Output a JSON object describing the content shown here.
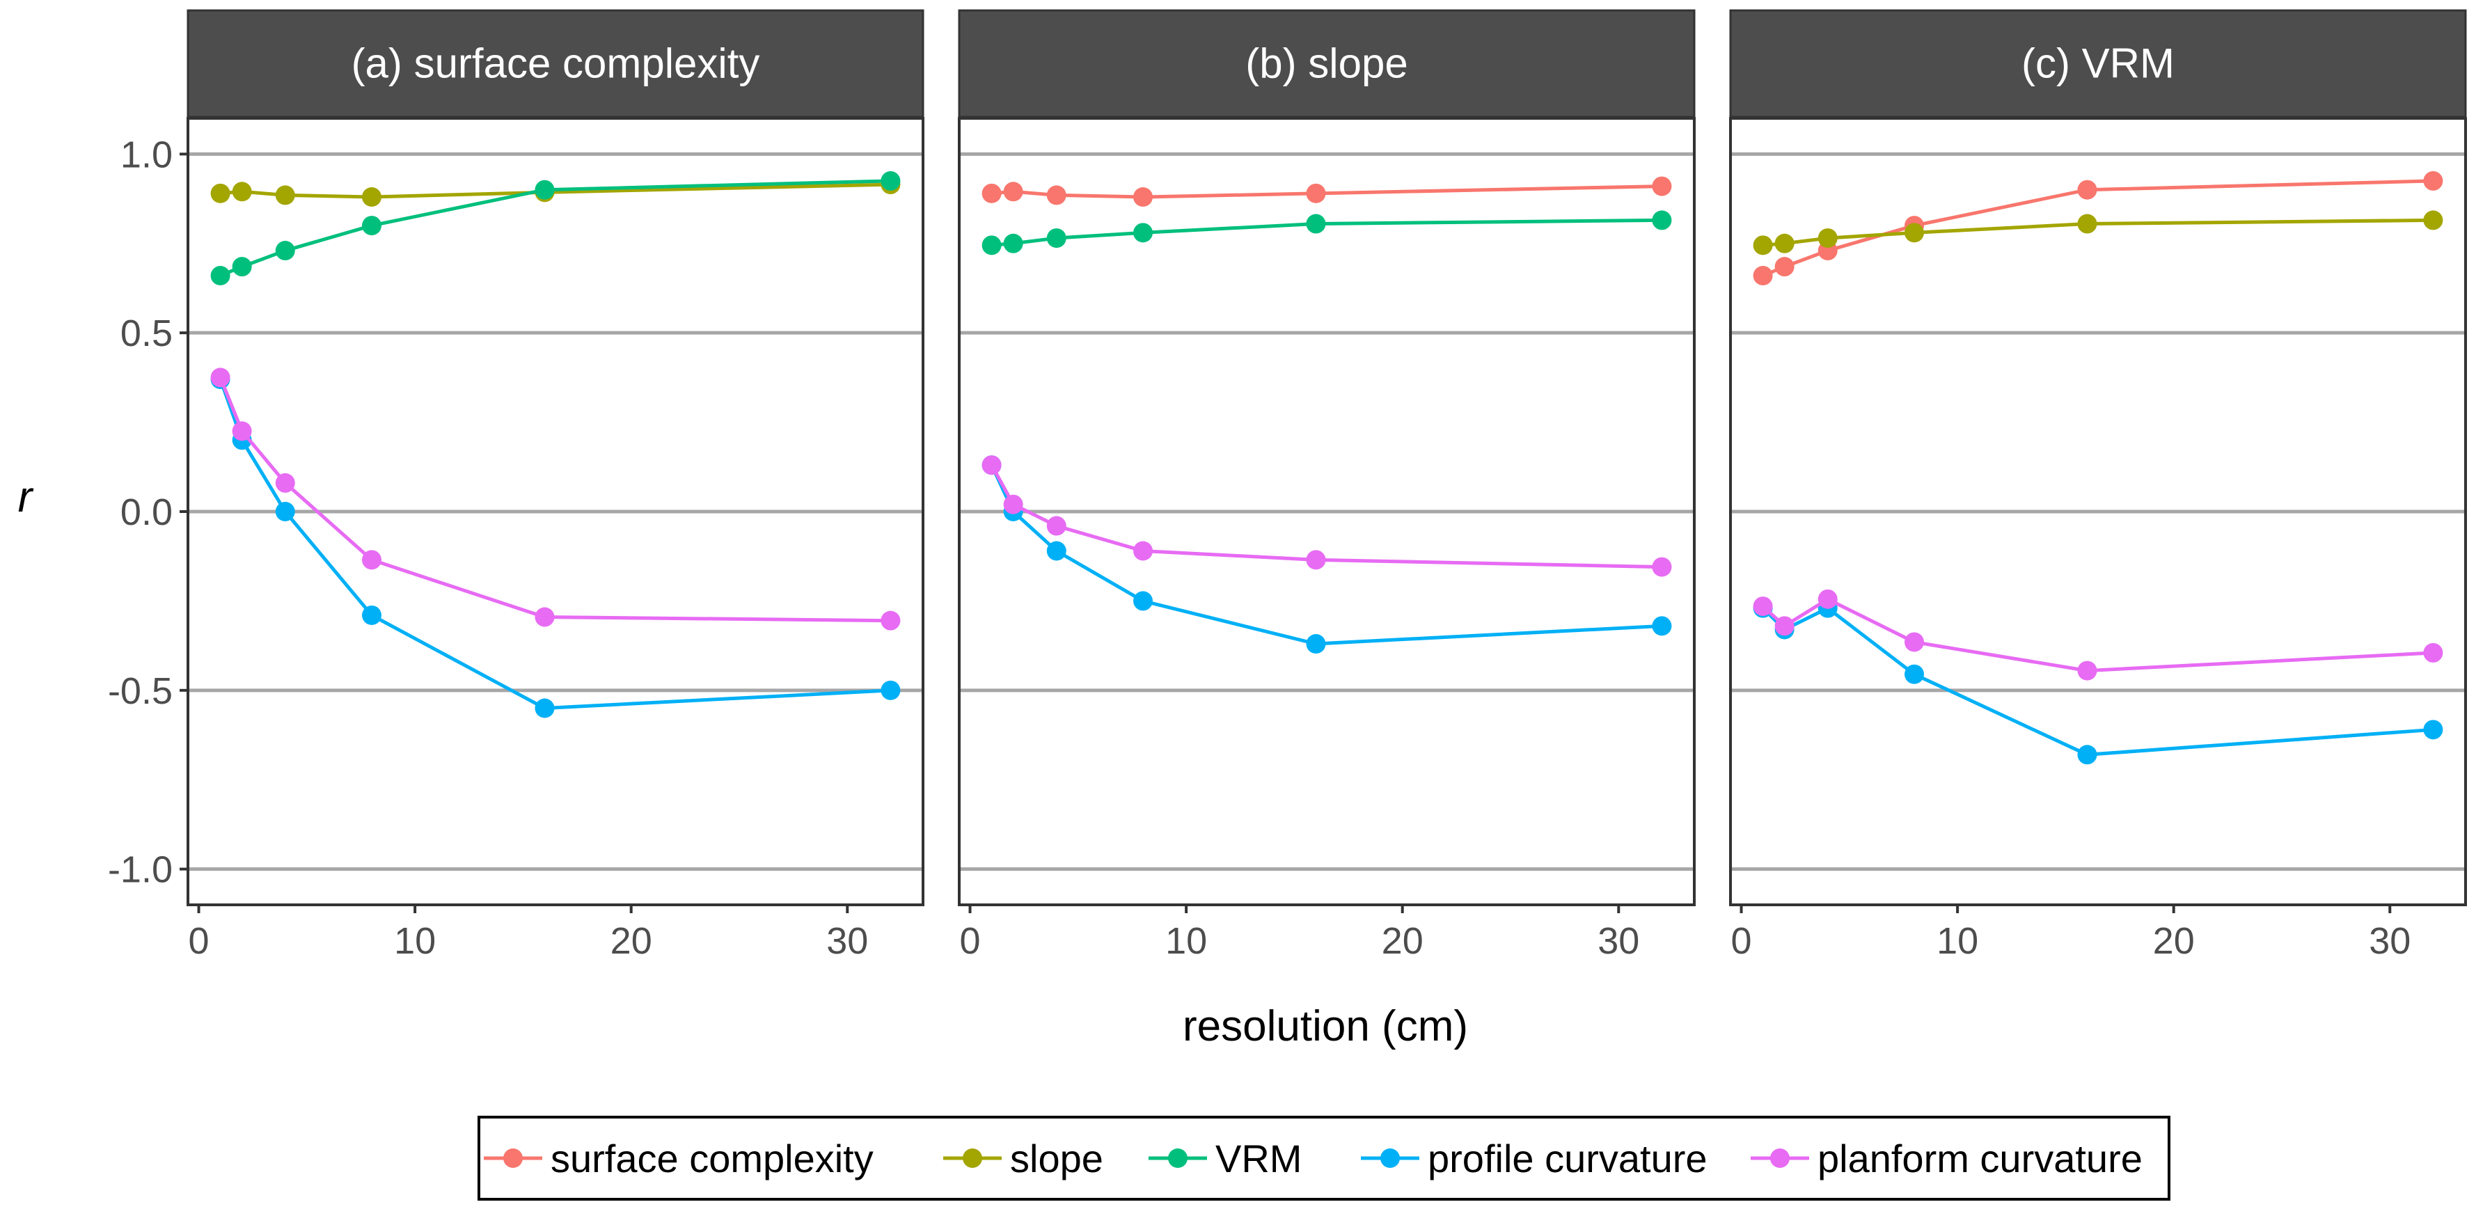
{
  "chart_data": {
    "type": "line",
    "xlabel": "resolution (cm)",
    "ylabel": "r",
    "x": [
      1,
      2,
      4,
      8,
      16,
      32
    ],
    "xlim": [
      -0.5,
      33.5
    ],
    "ylim": [
      -1.1,
      1.1
    ],
    "xticks": [
      0,
      10,
      20,
      30
    ],
    "xtick_labels": [
      "0",
      "10",
      "20",
      "30"
    ],
    "yticks": [
      -1.0,
      -0.5,
      0.0,
      0.5,
      1.0
    ],
    "ytick_labels": [
      "-1.0",
      "-0.5",
      "0.0",
      "0.5",
      "1.0"
    ],
    "grid": "horizontal major gridlines",
    "legend": {
      "position": "bottom",
      "entries": [
        {
          "name": "surface complexity",
          "color": "#F8766D"
        },
        {
          "name": "slope",
          "color": "#A3A500"
        },
        {
          "name": "VRM",
          "color": "#00BF7D"
        },
        {
          "name": "profile curvature",
          "color": "#00B0F6"
        },
        {
          "name": "planform curvature",
          "color": "#E76BF3"
        }
      ]
    },
    "panels": [
      {
        "title": "(a) surface complexity",
        "series": [
          {
            "name": "slope",
            "color": "#A3A500",
            "values": [
              0.89,
              0.895,
              0.885,
              0.88,
              0.893,
              0.915
            ]
          },
          {
            "name": "VRM",
            "color": "#00BF7D",
            "values": [
              0.66,
              0.685,
              0.73,
              0.8,
              0.9,
              0.925
            ]
          },
          {
            "name": "profile curvature",
            "color": "#00B0F6",
            "values": [
              0.37,
              0.2,
              0.0,
              -0.29,
              -0.55,
              -0.5
            ]
          },
          {
            "name": "planform curvature",
            "color": "#E76BF3",
            "values": [
              0.375,
              0.225,
              0.08,
              -0.135,
              -0.295,
              -0.305
            ]
          }
        ]
      },
      {
        "title": "(b) slope",
        "series": [
          {
            "name": "surface complexity",
            "color": "#F8766D",
            "values": [
              0.89,
              0.895,
              0.885,
              0.88,
              0.89,
              0.91
            ]
          },
          {
            "name": "VRM",
            "color": "#00BF7D",
            "values": [
              0.745,
              0.75,
              0.765,
              0.78,
              0.805,
              0.815
            ]
          },
          {
            "name": "profile curvature",
            "color": "#00B0F6",
            "values": [
              0.13,
              0.0,
              -0.11,
              -0.25,
              -0.37,
              -0.32
            ]
          },
          {
            "name": "planform curvature",
            "color": "#E76BF3",
            "values": [
              0.13,
              0.02,
              -0.04,
              -0.11,
              -0.135,
              -0.155
            ]
          }
        ]
      },
      {
        "title": "(c) VRM",
        "series": [
          {
            "name": "surface complexity",
            "color": "#F8766D",
            "values": [
              0.66,
              0.685,
              0.73,
              0.8,
              0.9,
              0.925
            ]
          },
          {
            "name": "slope",
            "color": "#A3A500",
            "values": [
              0.745,
              0.75,
              0.765,
              0.78,
              0.805,
              0.815
            ]
          },
          {
            "name": "profile curvature",
            "color": "#00B0F6",
            "values": [
              -0.27,
              -0.33,
              -0.27,
              -0.455,
              -0.68,
              -0.61
            ]
          },
          {
            "name": "planform curvature",
            "color": "#E76BF3",
            "values": [
              -0.265,
              -0.32,
              -0.245,
              -0.365,
              -0.445,
              -0.395
            ]
          }
        ]
      }
    ]
  }
}
